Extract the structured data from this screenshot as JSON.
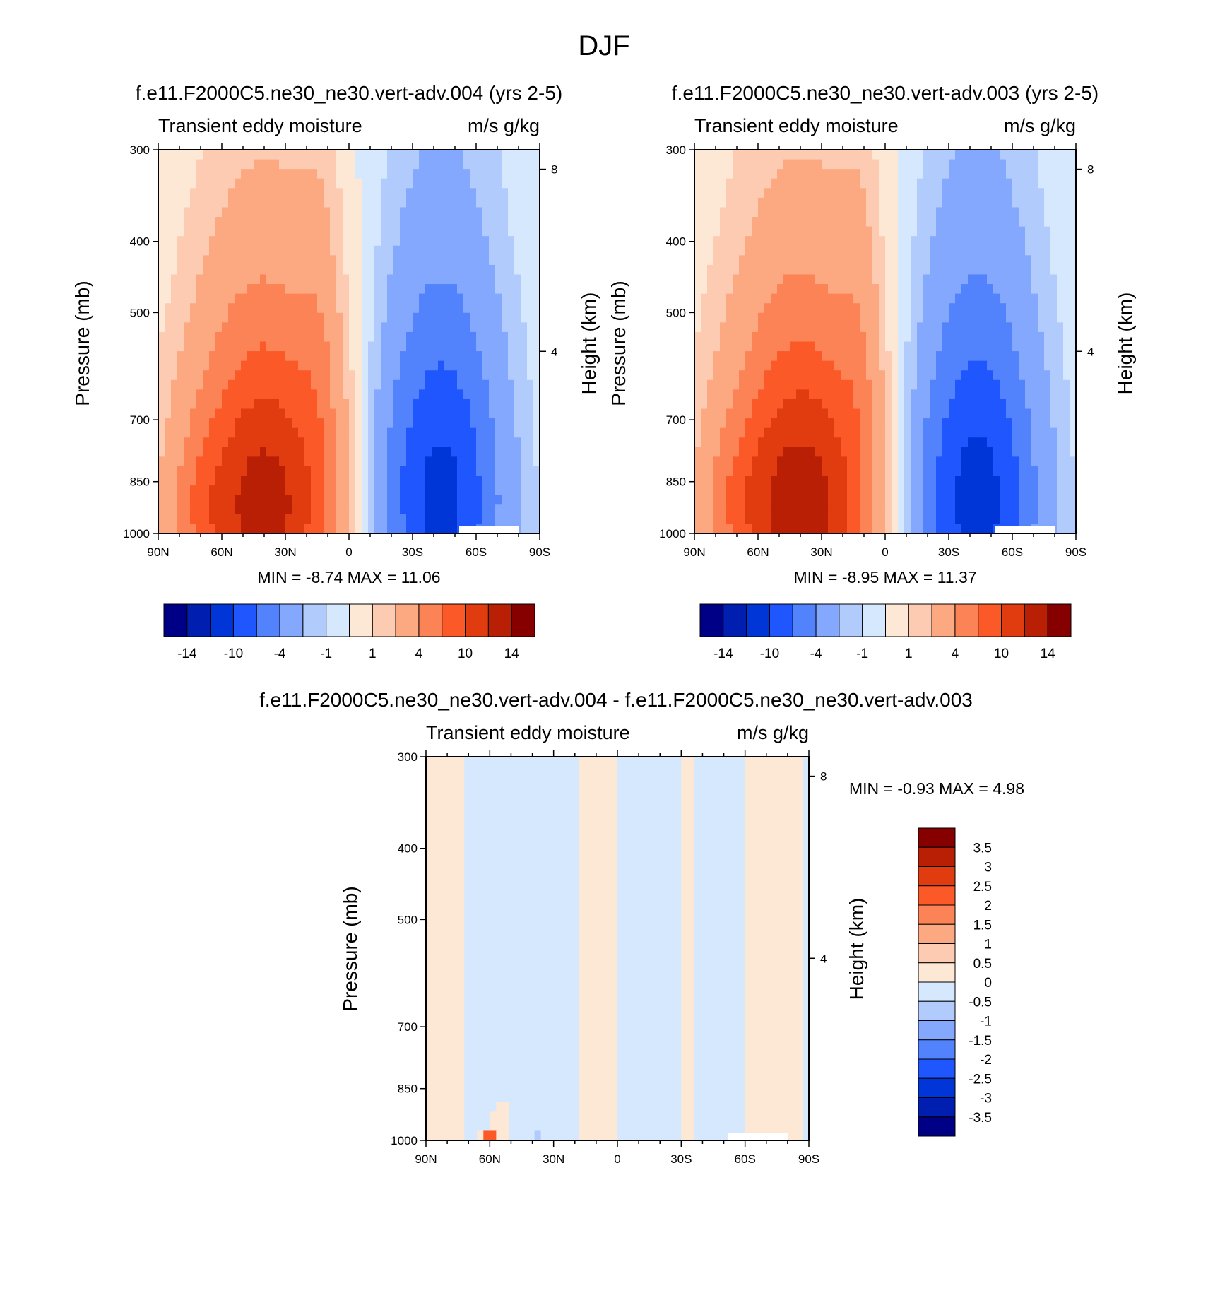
{
  "figure": {
    "main_title": "DJF",
    "colors": {
      "pos": [
        "#fde8d6",
        "#fdcbb2",
        "#fca982",
        "#fc8356",
        "#fb5a28",
        "#e03c10",
        "#b81f05",
        "#860000"
      ],
      "neg": [
        "#d6e8fd",
        "#b2cbfd",
        "#84a8fd",
        "#5283fd",
        "#1f56fd",
        "#0036d8",
        "#001fb0",
        "#000086"
      ],
      "missing": "#ffffff"
    }
  },
  "chart_data": [
    {
      "type": "heatmap",
      "id": "p1",
      "title": "f.e11.F2000C5.ne30_ne30.vert-adv.004 (yrs 2-5)",
      "left_label": "Transient eddy moisture",
      "right_label": "m/s g/kg",
      "xlabel": "",
      "ylabel": "Pressure (mb)",
      "y2label": "Height (km)",
      "x_ticks": [
        "90N",
        "60N",
        "30N",
        "0",
        "30S",
        "60S",
        "90S"
      ],
      "y_ticks": [
        "300",
        "400",
        "500",
        "700",
        "850",
        "1000"
      ],
      "y2_ticks": [
        "8",
        "4"
      ],
      "min_max": "MIN =  -8.74  MAX =  11.06",
      "colorbar_ticks": [
        "-14",
        "-10",
        "-4",
        "-1",
        "1",
        "4",
        "10",
        "14"
      ],
      "levels": [
        -14,
        -12,
        -10,
        -8,
        -6,
        -4,
        -2,
        -1,
        0,
        1,
        2,
        4,
        6,
        8,
        10,
        12,
        14
      ],
      "xlim": [
        -90,
        90
      ],
      "ylim": [
        1000,
        300
      ],
      "field": [
        {
          "shape": "bump",
          "lat": 40,
          "lat_sigma": 26,
          "p_center": 920,
          "p_sigma": 330,
          "amp": 11.06
        },
        {
          "shape": "bump",
          "lat": 72,
          "lat_sigma": 10,
          "p_center": 900,
          "p_sigma": 120,
          "amp": 1.4
        },
        {
          "shape": "bump",
          "lat": 14,
          "lat_sigma": 7,
          "p_center": 560,
          "p_sigma": 230,
          "amp": 1.3
        },
        {
          "shape": "bump",
          "lat": -43,
          "lat_sigma": 22,
          "p_center": 900,
          "p_sigma": 360,
          "amp": -8.74
        },
        {
          "shape": "bump",
          "lat": -18,
          "lat_sigma": 8,
          "p_center": 800,
          "p_sigma": 160,
          "amp": -0.4
        },
        {
          "shape": "bump",
          "lat": 8,
          "lat_sigma": 4,
          "p_center": 860,
          "p_sigma": 80,
          "amp": -0.5
        }
      ]
    },
    {
      "type": "heatmap",
      "id": "p2",
      "title": "f.e11.F2000C5.ne30_ne30.vert-adv.003 (yrs 2-5)",
      "left_label": "Transient eddy moisture",
      "right_label": "m/s g/kg",
      "xlabel": "",
      "ylabel": "Pressure (mb)",
      "y2label": "Height (km)",
      "x_ticks": [
        "90N",
        "60N",
        "30N",
        "0",
        "30S",
        "60S",
        "90S"
      ],
      "y_ticks": [
        "300",
        "400",
        "500",
        "700",
        "850",
        "1000"
      ],
      "y2_ticks": [
        "8",
        "4"
      ],
      "min_max": "MIN =  -8.95  MAX =  11.37",
      "colorbar_ticks": [
        "-14",
        "-10",
        "-4",
        "-1",
        "1",
        "4",
        "10",
        "14"
      ],
      "levels": [
        -14,
        -12,
        -10,
        -8,
        -6,
        -4,
        -2,
        -1,
        0,
        1,
        2,
        4,
        6,
        8,
        10,
        12,
        14
      ],
      "xlim": [
        -90,
        90
      ],
      "ylim": [
        1000,
        300
      ],
      "field": [
        {
          "shape": "bump",
          "lat": 40,
          "lat_sigma": 26,
          "p_center": 920,
          "p_sigma": 330,
          "amp": 11.37
        },
        {
          "shape": "bump",
          "lat": 72,
          "lat_sigma": 10,
          "p_center": 900,
          "p_sigma": 120,
          "amp": 1.4
        },
        {
          "shape": "bump",
          "lat": 12,
          "lat_sigma": 7,
          "p_center": 560,
          "p_sigma": 230,
          "amp": 1.4
        },
        {
          "shape": "bump",
          "lat": -43,
          "lat_sigma": 22,
          "p_center": 900,
          "p_sigma": 360,
          "amp": -8.95
        },
        {
          "shape": "bump",
          "lat": -18,
          "lat_sigma": 8,
          "p_center": 800,
          "p_sigma": 160,
          "amp": -0.4
        },
        {
          "shape": "bump",
          "lat": 12,
          "lat_sigma": 3,
          "p_center": 870,
          "p_sigma": 60,
          "amp": -0.5
        }
      ]
    },
    {
      "type": "heatmap",
      "id": "diff",
      "title": "f.e11.F2000C5.ne30_ne30.vert-adv.004 - f.e11.F2000C5.ne30_ne30.vert-adv.003",
      "left_label": "Transient eddy moisture",
      "right_label": "m/s g/kg",
      "xlabel": "",
      "ylabel": "Pressure (mb)",
      "y2label": "Height (km)",
      "x_ticks": [
        "90N",
        "60N",
        "30N",
        "0",
        "30S",
        "60S",
        "90S"
      ],
      "y_ticks": [
        "300",
        "400",
        "500",
        "700",
        "850",
        "1000"
      ],
      "y2_ticks": [
        "8",
        "4"
      ],
      "min_max": "MIN =  -0.93  MAX =   4.98",
      "colorbar_ticks": [
        "3.5",
        "3",
        "2.5",
        "2",
        "1.5",
        "1",
        "0.5",
        "0",
        "-0.5",
        "-1",
        "-1.5",
        "-2",
        "-2.5",
        "-3",
        "-3.5"
      ],
      "levels": [
        -3.5,
        -3,
        -2.5,
        -2,
        -1.5,
        -1,
        -0.5,
        0,
        0.5,
        1,
        1.5,
        2,
        2.5,
        3,
        3.5
      ],
      "xlim": [
        -90,
        90
      ],
      "ylim": [
        1000,
        300
      ],
      "field": [
        {
          "shape": "band",
          "lat_from": 90,
          "lat_to": 71,
          "value": 0.2
        },
        {
          "shape": "band",
          "lat_from": 18,
          "lat_to": 0,
          "value": 0.2
        },
        {
          "shape": "band",
          "lat_from": -30,
          "lat_to": -35,
          "value": 0.2
        },
        {
          "shape": "band",
          "lat_from": -60,
          "lat_to": -87,
          "value": 0.2
        },
        {
          "shape": "bump",
          "lat": 55,
          "lat_sigma": 6,
          "p_center": 950,
          "p_sigma": 70,
          "amp": 0.3
        },
        {
          "shape": "bump",
          "lat": 60,
          "lat_sigma": 2,
          "p_center": 995,
          "p_sigma": 10,
          "amp": 4.98
        },
        {
          "shape": "bump",
          "lat": 38,
          "lat_sigma": 1,
          "p_center": 995,
          "p_sigma": 10,
          "amp": -0.93
        },
        {
          "shape": "base",
          "value": -0.2
        }
      ]
    }
  ]
}
